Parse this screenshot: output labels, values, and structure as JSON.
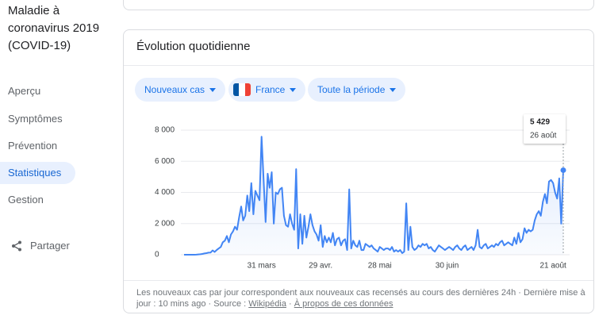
{
  "sidebar": {
    "title": "Maladie à coronavirus 2019 (COVID-19)",
    "nav": [
      "Aperçu",
      "Symptômes",
      "Prévention",
      "Statistiques",
      "Gestion"
    ],
    "share": "Partager"
  },
  "card": {
    "title": "Évolution quotidienne",
    "filters": [
      "Nouveaux cas",
      "France",
      "Toute la période"
    ],
    "footer": {
      "text": "Les nouveaux cas par jour correspondent aux nouveaux cas recensés au cours des dernières 24h · Dernière mise à jour : 10 mins ago · Source :",
      "source_link": "Wikipédia",
      "separator": "·",
      "about_link": "À propos de ces données"
    }
  },
  "chart_data": {
    "type": "line",
    "color": "#4285f4",
    "grid": true,
    "ylim": [
      0,
      8000
    ],
    "yticks": [
      0,
      {
        "value": 2000,
        "label": "2 000"
      },
      {
        "value": 4000,
        "label": "4 000"
      },
      {
        "value": 6000,
        "label": "6 000"
      },
      {
        "value": 8000,
        "label": "8 000"
      }
    ],
    "categories": [
      null,
      null,
      null,
      null,
      null,
      null,
      null,
      null,
      null,
      null,
      null,
      null,
      null,
      null,
      null,
      null,
      null,
      null,
      null,
      null,
      null,
      null,
      null,
      null,
      null,
      null,
      null,
      null,
      null,
      null,
      null,
      null,
      null,
      null,
      null,
      null,
      null,
      null,
      "31 mars",
      null,
      null,
      null,
      null,
      null,
      null,
      null,
      null,
      null,
      null,
      null,
      null,
      null,
      null,
      null,
      null,
      null,
      null,
      null,
      null,
      null,
      null,
      null,
      null,
      null,
      null,
      null,
      null,
      "29 avr.",
      null,
      null,
      null,
      null,
      null,
      null,
      null,
      null,
      null,
      null,
      null,
      null,
      null,
      null,
      null,
      null,
      null,
      null,
      null,
      null,
      null,
      null,
      null,
      null,
      null,
      null,
      null,
      null,
      "28 mai",
      null,
      null,
      null,
      null,
      null,
      null,
      null,
      null,
      null,
      null,
      null,
      null,
      null,
      null,
      null,
      null,
      null,
      null,
      null,
      null,
      null,
      null,
      null,
      null,
      null,
      null,
      null,
      null,
      null,
      null,
      null,
      null,
      "30 juin",
      null,
      null,
      null,
      null,
      null,
      null,
      null,
      null,
      null,
      null,
      null,
      null,
      null,
      null,
      null,
      null,
      null,
      null,
      null,
      null,
      null,
      null,
      null,
      null,
      null,
      null,
      null,
      null,
      null,
      null,
      null,
      null,
      null,
      null,
      null,
      null,
      null,
      null,
      null,
      null,
      null,
      null,
      null,
      null,
      null,
      null,
      null,
      null,
      null,
      null,
      null,
      "21 août",
      null,
      null,
      null,
      null,
      null
    ],
    "values": [
      0,
      0,
      0,
      0,
      0,
      2,
      4,
      20,
      30,
      50,
      80,
      100,
      130,
      140,
      280,
      180,
      300,
      400,
      500,
      800,
      900,
      1200,
      800,
      1300,
      1500,
      1800,
      1600,
      2400,
      3100,
      2200,
      2500,
      3800,
      2800,
      4600,
      2600,
      4100,
      3800,
      3500,
      7578,
      4900,
      2100,
      5200,
      4300,
      5300,
      2000,
      4000,
      3900,
      4200,
      4300,
      2500,
      1900,
      1800,
      2600,
      2000,
      1600,
      5500,
      400,
      2600,
      700,
      2500,
      1100,
      1800,
      2600,
      1900,
      1500,
      1300,
      900,
      1900,
      500,
      1200,
      800,
      1100,
      800,
      1400,
      600,
      1000,
      1100,
      600,
      900,
      1000,
      300,
      4200,
      400,
      900,
      600,
      500,
      900,
      300,
      300,
      700,
      600,
      500,
      600,
      400,
      300,
      200,
      500,
      400,
      300,
      400,
      400,
      300,
      500,
      200,
      300,
      200,
      300,
      100,
      200,
      3300,
      300,
      1800,
      500,
      300,
      400,
      600,
      500,
      700,
      600,
      700,
      400,
      500,
      300,
      200,
      400,
      600,
      500,
      400,
      300,
      400,
      500,
      400,
      300,
      500,
      600,
      400,
      300,
      500,
      600,
      300,
      400,
      500,
      300,
      600,
      1600,
      500,
      400,
      600,
      700,
      400,
      500,
      600,
      500,
      700,
      600,
      800,
      900,
      600,
      700,
      800,
      700,
      600,
      1100,
      700,
      1400,
      800,
      1000,
      1700,
      1400,
      1600,
      1500,
      1600,
      2200,
      2600,
      2800,
      2500,
      3400,
      3900,
      3300,
      4700,
      4800,
      4600,
      4000,
      3600,
      4900,
      2000,
      5429
    ],
    "tooltip": {
      "label": "5 429",
      "date": "26 août"
    }
  }
}
